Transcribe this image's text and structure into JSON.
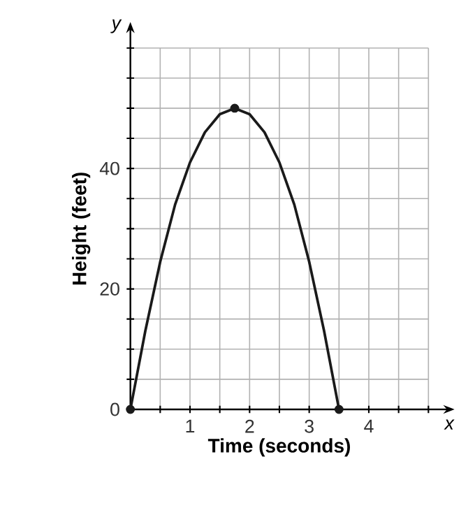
{
  "chart_data": {
    "type": "line",
    "xlabel": "Time (seconds)",
    "ylabel": "Height (feet)",
    "annotations": [
      "x",
      "y"
    ],
    "xlim": [
      0,
      5
    ],
    "ylim": [
      0,
      60
    ],
    "xticks": [
      {
        "value": 0.5,
        "label": null
      },
      1,
      {
        "value": 1.5,
        "label": null
      },
      2,
      {
        "value": 2.5,
        "label": null
      },
      3,
      {
        "value": 3.5,
        "label": null
      },
      4,
      {
        "value": 4.5,
        "label": null
      },
      {
        "value": 5,
        "label": null
      }
    ],
    "yticks": [
      0,
      {
        "value": 5,
        "label": null
      },
      {
        "value": 10,
        "label": null
      },
      {
        "value": 15,
        "label": null
      },
      20,
      {
        "value": 25,
        "label": null
      },
      {
        "value": 30,
        "label": null
      },
      {
        "value": 35,
        "label": null
      },
      40,
      {
        "value": 45,
        "label": null
      },
      {
        "value": 50,
        "label": null
      },
      {
        "value": 55,
        "label": null
      },
      {
        "value": 60,
        "label": null
      }
    ],
    "grid": true,
    "series": [
      {
        "color": "#1a1a1a",
        "marker": "none",
        "x": [
          0,
          0.25,
          0.5,
          0.75,
          1,
          1.25,
          1.5,
          1.75,
          2,
          2.25,
          2.5,
          2.75,
          3,
          3.25,
          3.5
        ],
        "values": [
          0,
          13,
          24.5,
          34,
          41,
          46,
          49,
          50,
          49,
          46,
          41,
          34,
          24.5,
          13,
          0
        ]
      },
      {
        "type": "scatter",
        "color": "#1a1a1a",
        "marker": "circle",
        "x": [
          0,
          1.75,
          3.5
        ],
        "values": [
          0,
          50,
          0
        ]
      }
    ]
  }
}
